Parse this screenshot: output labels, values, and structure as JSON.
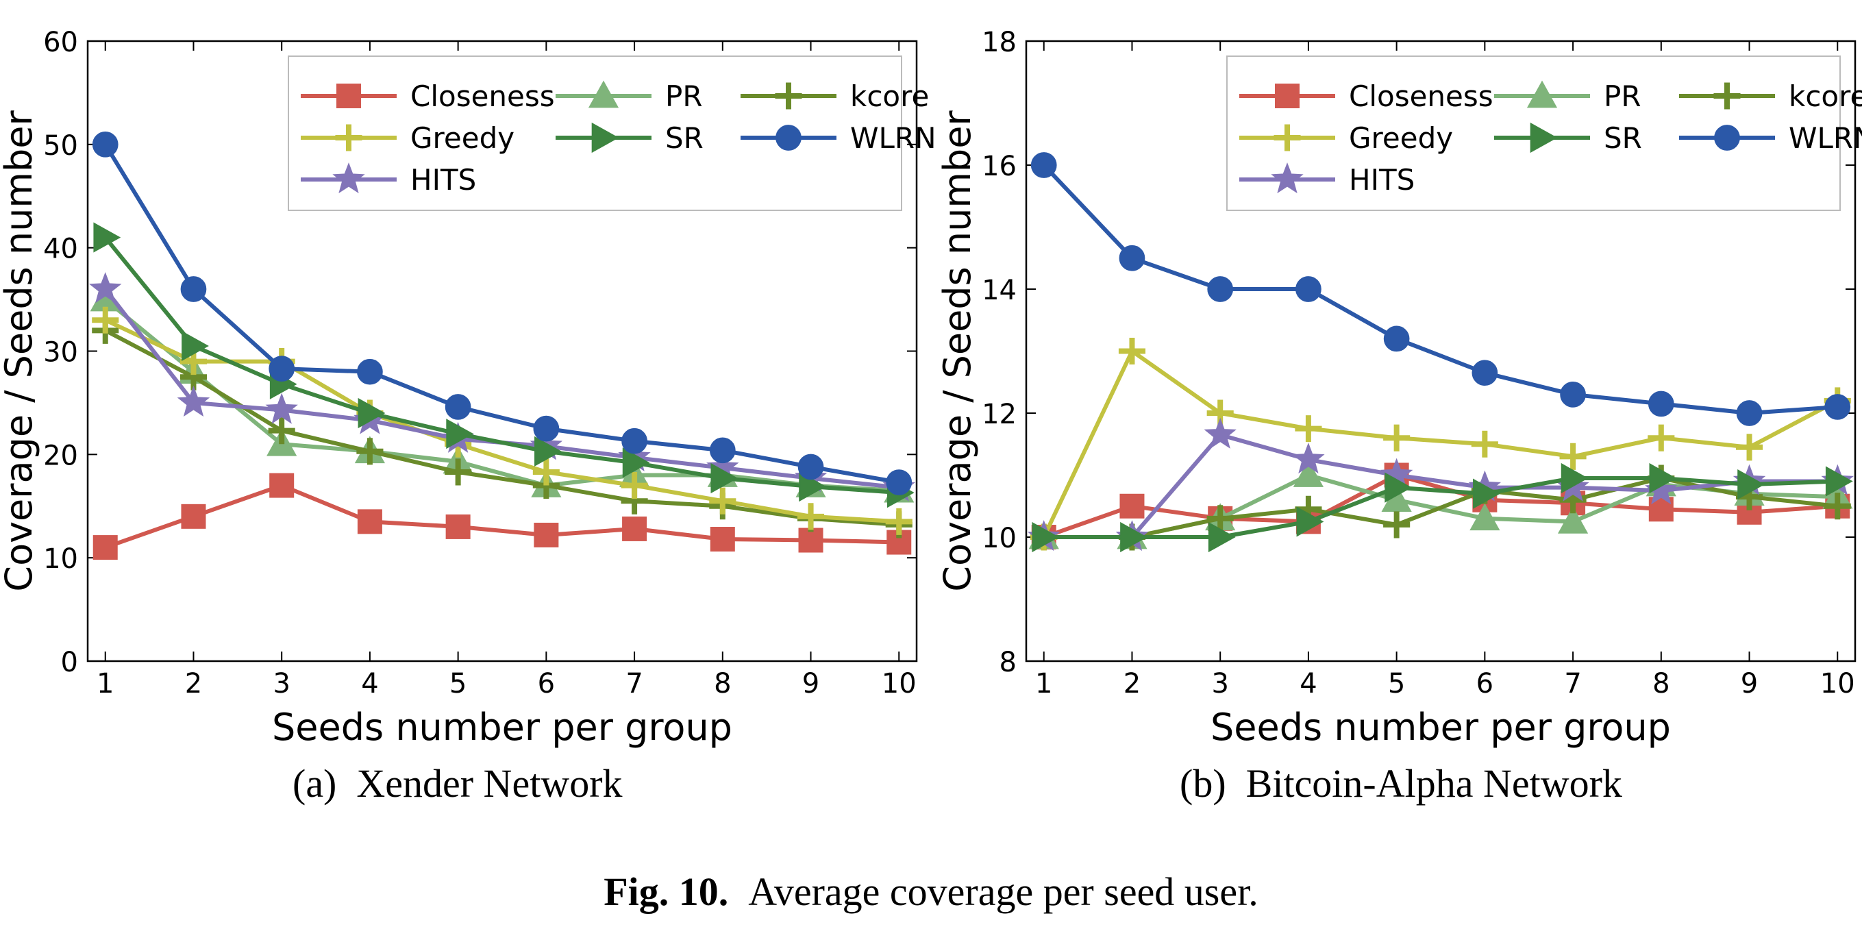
{
  "colors": {
    "Closeness": "#d1584f",
    "Greedy": "#c2c240",
    "HITS": "#8274b8",
    "PR": "#7fb47a",
    "SR": "#3d8540",
    "kcore": "#6a8b2a",
    "WLRN": "#2b58a8"
  },
  "markers": {
    "Closeness": "square",
    "Greedy": "plus",
    "HITS": "star",
    "PR": "triangle-up",
    "SR": "triangle-right",
    "kcore": "plus",
    "WLRN": "circle"
  },
  "chart_data": [
    {
      "type": "line",
      "subcaption_label": "(a)",
      "subcaption_title": "Xender Network",
      "xlabel": "Seeds number per group",
      "ylabel": "Coverage / Seeds number",
      "x": [
        1,
        2,
        3,
        4,
        5,
        6,
        7,
        8,
        9,
        10
      ],
      "xlim": [
        0.8,
        10.2
      ],
      "ylim": [
        0,
        60
      ],
      "yticks": [
        0,
        10,
        20,
        30,
        40,
        50,
        60
      ],
      "grid": false,
      "legend_position": "top-right",
      "legend_order": [
        "Closeness",
        "PR",
        "kcore",
        "Greedy",
        "SR",
        "WLRN",
        "HITS"
      ],
      "series": [
        {
          "name": "Closeness",
          "values": [
            11,
            14,
            17,
            13.5,
            13,
            12.2,
            12.8,
            11.8,
            11.7,
            11.5
          ]
        },
        {
          "name": "PR",
          "values": [
            35,
            28,
            21,
            20.3,
            19.3,
            17,
            18,
            18,
            17,
            16.5
          ]
        },
        {
          "name": "kcore",
          "values": [
            32,
            27.5,
            22.3,
            20.3,
            18.3,
            17,
            15.5,
            15,
            13.8,
            13.2
          ]
        },
        {
          "name": "Greedy",
          "values": [
            33,
            29,
            29,
            24,
            21,
            18.3,
            17,
            15.5,
            14,
            13.5
          ]
        },
        {
          "name": "HITS",
          "values": [
            36,
            25,
            24.3,
            23.3,
            21.5,
            20.8,
            19.7,
            18.7,
            17.7,
            16.8
          ]
        },
        {
          "name": "SR",
          "values": [
            41,
            30.5,
            26.8,
            24,
            22,
            20.3,
            19.2,
            17.7,
            16.9,
            16.3
          ]
        },
        {
          "name": "WLRN",
          "values": [
            50,
            36,
            28.3,
            28,
            24.6,
            22.5,
            21.3,
            20.4,
            18.8,
            17.3
          ]
        }
      ]
    },
    {
      "type": "line",
      "subcaption_label": "(b)",
      "subcaption_title": "Bitcoin-Alpha Network",
      "xlabel": "Seeds number per group",
      "ylabel": "Coverage / Seeds number",
      "x": [
        1,
        2,
        3,
        4,
        5,
        6,
        7,
        8,
        9,
        10
      ],
      "xlim": [
        0.8,
        10.2
      ],
      "ylim": [
        8,
        18
      ],
      "yticks": [
        8,
        10,
        12,
        14,
        16,
        18
      ],
      "grid": false,
      "legend_position": "top-right",
      "legend_order": [
        "Closeness",
        "PR",
        "kcore",
        "Greedy",
        "SR",
        "WLRN",
        "HITS"
      ],
      "series": [
        {
          "name": "Closeness",
          "values": [
            10,
            10.5,
            10.3,
            10.25,
            11,
            10.6,
            10.55,
            10.45,
            10.4,
            10.5
          ]
        },
        {
          "name": "PR",
          "values": [
            10,
            10,
            10.3,
            11,
            10.6,
            10.3,
            10.25,
            10.85,
            10.7,
            10.65
          ]
        },
        {
          "name": "kcore",
          "values": [
            10,
            10,
            10.3,
            10.45,
            10.2,
            10.75,
            10.6,
            10.95,
            10.65,
            10.5
          ]
        },
        {
          "name": "Greedy",
          "values": [
            10,
            13,
            12,
            11.75,
            11.6,
            11.5,
            11.3,
            11.6,
            11.45,
            12.2
          ]
        },
        {
          "name": "HITS",
          "values": [
            10,
            10,
            11.65,
            11.25,
            11,
            10.8,
            10.8,
            10.75,
            10.9,
            10.9
          ]
        },
        {
          "name": "SR",
          "values": [
            10,
            10,
            10,
            10.25,
            10.8,
            10.7,
            10.95,
            10.95,
            10.85,
            10.9
          ]
        },
        {
          "name": "WLRN",
          "values": [
            16,
            14.5,
            14,
            14,
            13.2,
            12.65,
            12.3,
            12.15,
            12,
            12.1
          ]
        }
      ]
    }
  ],
  "figure_caption": {
    "label": "Fig. 10.",
    "text": "Average coverage per seed user."
  }
}
